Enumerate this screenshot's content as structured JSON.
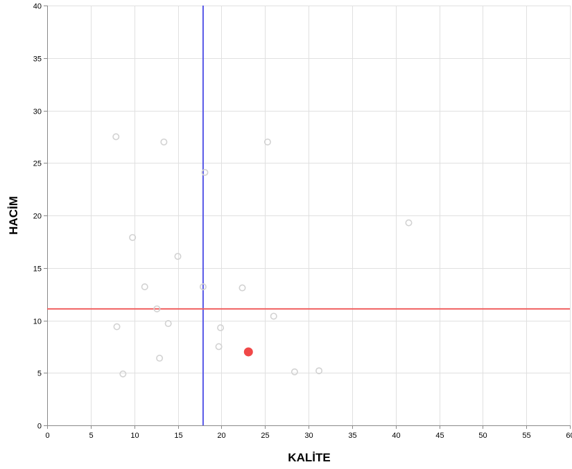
{
  "chart_data": {
    "type": "scatter",
    "xlabel": "KALİTE",
    "ylabel": "HACİM",
    "xlim": [
      0,
      60
    ],
    "ylim": [
      0,
      40
    ],
    "x_ticks": [
      0,
      5,
      10,
      15,
      20,
      25,
      30,
      35,
      40,
      45,
      50,
      55,
      60
    ],
    "y_ticks": [
      0,
      5,
      10,
      15,
      20,
      25,
      30,
      35,
      40
    ],
    "grid": true,
    "points": [
      {
        "x": 7.9,
        "y": 27.5
      },
      {
        "x": 13.4,
        "y": 27.0
      },
      {
        "x": 25.3,
        "y": 27.0
      },
      {
        "x": 18.1,
        "y": 24.1
      },
      {
        "x": 41.5,
        "y": 19.3
      },
      {
        "x": 9.8,
        "y": 17.9
      },
      {
        "x": 15.0,
        "y": 16.1
      },
      {
        "x": 11.2,
        "y": 13.2
      },
      {
        "x": 17.9,
        "y": 13.2
      },
      {
        "x": 22.4,
        "y": 13.1
      },
      {
        "x": 12.6,
        "y": 11.1
      },
      {
        "x": 26.0,
        "y": 10.4
      },
      {
        "x": 8.0,
        "y": 9.4
      },
      {
        "x": 13.9,
        "y": 9.7
      },
      {
        "x": 19.9,
        "y": 9.3
      },
      {
        "x": 19.7,
        "y": 7.5
      },
      {
        "x": 12.9,
        "y": 6.4
      },
      {
        "x": 8.7,
        "y": 4.9
      },
      {
        "x": 28.4,
        "y": 5.1
      },
      {
        "x": 31.2,
        "y": 5.2
      }
    ],
    "highlight_point": {
      "x": 23.1,
      "y": 7.0,
      "color": "#f04848"
    },
    "reference_lines": {
      "vertical": {
        "x": 17.9,
        "color": "#5858e8"
      },
      "horizontal": {
        "y": 11.1,
        "color": "#f06060"
      }
    },
    "colors": {
      "point_stroke": "#d2d2d2",
      "grid": "#e0e0e0",
      "axis": "#888888"
    }
  }
}
